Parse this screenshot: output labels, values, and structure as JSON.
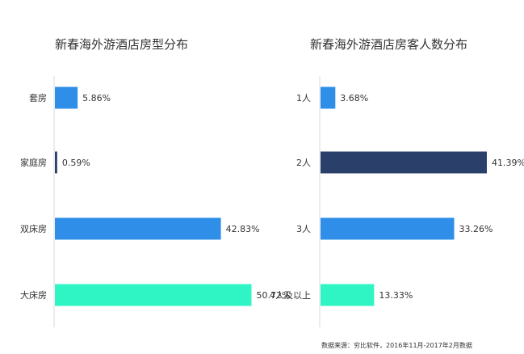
{
  "chart_data": [
    {
      "type": "bar",
      "orientation": "horizontal",
      "title": "新春海外游酒店房型分布",
      "categories": [
        "套房",
        "家庭房",
        "双床房",
        "大床房"
      ],
      "values": [
        5.86,
        0.59,
        42.83,
        50.72
      ],
      "value_labels": [
        "5.86%",
        "0.59%",
        "42.83%",
        "50.72%"
      ],
      "colors": [
        "#2e8ee8",
        "#2b3f6b",
        "#2e8ee8",
        "#2ff5c4"
      ],
      "xlim": [
        0,
        60
      ]
    },
    {
      "type": "bar",
      "orientation": "horizontal",
      "title": "新春海外游酒店房客人数分布",
      "categories": [
        "1人",
        "2人",
        "3人",
        "4人及以上"
      ],
      "values": [
        3.68,
        41.39,
        33.26,
        13.33
      ],
      "value_labels": [
        "3.68%",
        "41.39%",
        "33.26%",
        "13.33%"
      ],
      "colors": [
        "#2e8ee8",
        "#2b3f6b",
        "#2e8ee8",
        "#2ff5c4"
      ],
      "xlim": [
        0,
        42
      ]
    }
  ],
  "source": "数据来源：穷比软件，2016年11月-2017年2月数据"
}
